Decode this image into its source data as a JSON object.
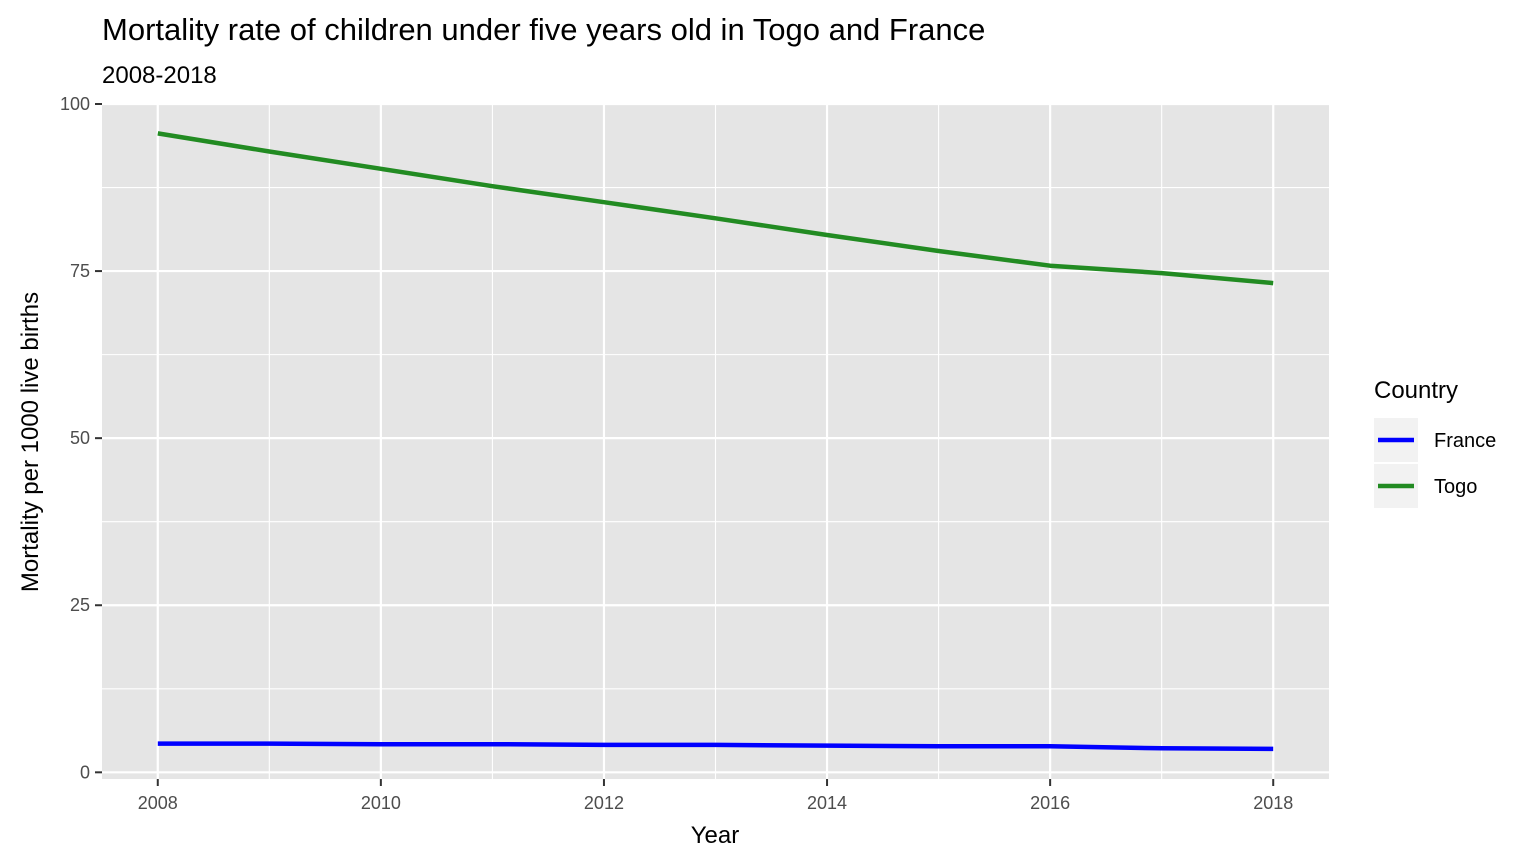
{
  "chart_data": {
    "type": "line",
    "title": "Mortality rate of children under five years old in Togo and France",
    "subtitle": "2008-2018",
    "xlabel": "Year",
    "ylabel": "Mortality per 1000 live births",
    "xlim": [
      2007.5,
      2018.5
    ],
    "ylim": [
      -1,
      100
    ],
    "x_ticks": [
      2008,
      2010,
      2012,
      2014,
      2016,
      2018
    ],
    "x_tick_labels": [
      "2008",
      "2010",
      "2012",
      "2014",
      "2016",
      "2018"
    ],
    "y_ticks": [
      0,
      25,
      50,
      75,
      100
    ],
    "y_tick_labels": [
      "0",
      "25",
      "50",
      "75",
      "100"
    ],
    "grid": true,
    "legend": {
      "title": "Country",
      "position": "right"
    },
    "x": [
      2008,
      2009,
      2010,
      2011,
      2012,
      2013,
      2014,
      2015,
      2016,
      2017,
      2018
    ],
    "series": [
      {
        "name": "France",
        "color": "#0000ff",
        "values": [
          4.3,
          4.3,
          4.2,
          4.2,
          4.1,
          4.1,
          4.0,
          3.9,
          3.9,
          3.6,
          3.5
        ]
      },
      {
        "name": "Togo",
        "color": "#228b22",
        "values": [
          95.6,
          92.9,
          90.3,
          87.7,
          85.3,
          82.9,
          80.4,
          78.0,
          75.8,
          74.7,
          73.2
        ]
      }
    ]
  }
}
